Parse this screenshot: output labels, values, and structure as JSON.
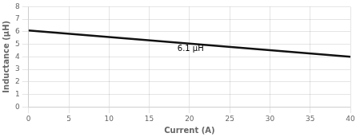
{
  "chart_data": {
    "type": "line",
    "xlabel": "Current (A)",
    "ylabel": "Inductance (μH)",
    "x": [
      0,
      40
    ],
    "values": [
      6.1,
      4.0
    ],
    "color": "#111111",
    "xlim": [
      0,
      40
    ],
    "ylim": [
      0,
      8
    ],
    "xticks": [
      0,
      5,
      10,
      15,
      20,
      25,
      30,
      35,
      40
    ],
    "yticks": [
      0,
      1,
      2,
      3,
      4,
      5,
      6,
      7,
      8
    ],
    "grid": true,
    "annotations": [
      {
        "text": "6.1 μH",
        "x": 18.5,
        "y": 4.65
      }
    ]
  }
}
